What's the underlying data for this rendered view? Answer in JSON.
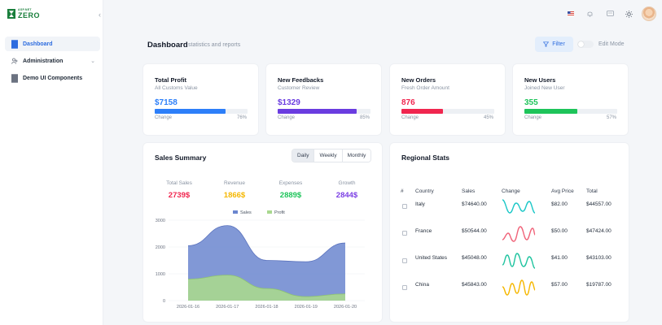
{
  "brand": {
    "small": "ASP.NET",
    "big": "ZERO"
  },
  "sidebar": {
    "items": [
      {
        "label": "Dashboard",
        "active": true
      },
      {
        "label": "Administration",
        "active": false
      },
      {
        "label": "Demo UI Components",
        "active": false
      }
    ]
  },
  "header": {
    "title": "Dashboard",
    "subtitle": "statistics and reports",
    "filter_label": "Filter",
    "edit_mode_label": "Edit Mode"
  },
  "stats": [
    {
      "title": "Total Profit",
      "subtitle": "All Customs Value",
      "value": "$7158",
      "change_label": "Change",
      "percent": "76%",
      "fill": 0.76,
      "color": "#2d7ff9"
    },
    {
      "title": "New Feedbacks",
      "subtitle": "Customer Review",
      "value": "$1329",
      "change_label": "Change",
      "percent": "85%",
      "fill": 0.85,
      "color": "#6a3ce0"
    },
    {
      "title": "New Orders",
      "subtitle": "Fresh Order Amount",
      "value": "876",
      "change_label": "Change",
      "percent": "45%",
      "fill": 0.45,
      "color": "#f0264f"
    },
    {
      "title": "New Users",
      "subtitle": "Joined New User",
      "value": "355",
      "change_label": "Change",
      "percent": "57%",
      "fill": 0.57,
      "color": "#1ec45a"
    }
  ],
  "sales_summary": {
    "title": "Sales Summary",
    "tabs": [
      "Daily",
      "Weekly",
      "Monthly"
    ],
    "kpis": [
      {
        "label": "Total Sales",
        "value": "2739$",
        "color": "#f0264f"
      },
      {
        "label": "Revenue",
        "value": "1866$",
        "color": "#f5b700"
      },
      {
        "label": "Expenses",
        "value": "2889$",
        "color": "#1ec45a"
      },
      {
        "label": "Growth",
        "value": "2844$",
        "color": "#7b3fe4"
      }
    ]
  },
  "chart_data": {
    "type": "area",
    "x": [
      "2026-01-16",
      "2026-01-17",
      "2026-01-18",
      "2026-01-19",
      "2026-01-20"
    ],
    "series": [
      {
        "name": "Sales",
        "values": [
          2050,
          2800,
          1500,
          1450,
          2150
        ],
        "color": "#6b86cf"
      },
      {
        "name": "Profit",
        "values": [
          800,
          950,
          450,
          150,
          250
        ],
        "color": "#a9d88f"
      }
    ],
    "yticks": [
      0,
      1000,
      2000,
      3000
    ],
    "ylim": [
      0,
      3000
    ],
    "legend": "top-center",
    "grid": true
  },
  "regional": {
    "title": "Regional Stats",
    "headers": [
      "#",
      "Country",
      "Sales",
      "Change",
      "Avg Price",
      "Total"
    ],
    "rows": [
      {
        "country": "Italy",
        "sales": "$74640.00",
        "avg": "$82.00",
        "total": "$44557.00",
        "color": "#1fc8c8"
      },
      {
        "country": "France",
        "sales": "$50544.00",
        "avg": "$50.00",
        "total": "$47424.00",
        "color": "#f0647a"
      },
      {
        "country": "United States",
        "sales": "$45048.00",
        "avg": "$41.00",
        "total": "$43103.00",
        "color": "#21c4a0"
      },
      {
        "country": "China",
        "sales": "$45843.00",
        "avg": "$57.00",
        "total": "$19787.00",
        "color": "#f5b700"
      }
    ]
  },
  "icons": {
    "flag": "us-flag-icon",
    "bell": "bell-icon",
    "chat": "message-icon",
    "theme": "sun-icon"
  }
}
